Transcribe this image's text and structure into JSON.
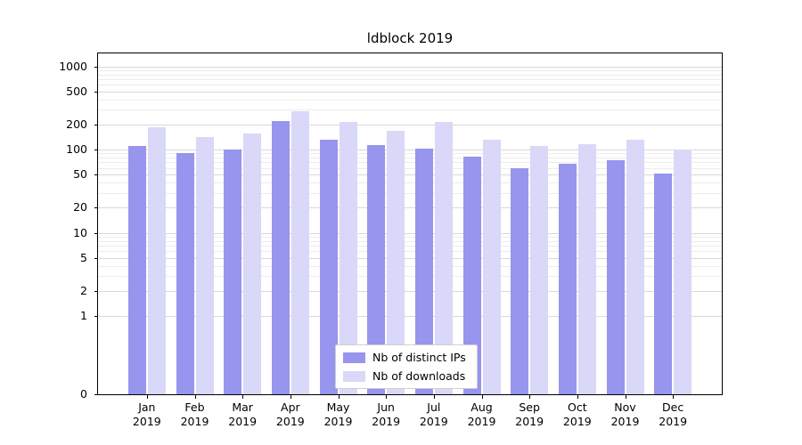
{
  "chart_data": {
    "type": "bar",
    "title": "ldblock 2019",
    "y_scale": "symlog",
    "grid": true,
    "legend_position": "lower center",
    "ylim": [
      0,
      1500
    ],
    "y_ticks": [
      0,
      1,
      2,
      5,
      10,
      20,
      50,
      100,
      200,
      500,
      1000
    ],
    "y_minor_ticks": [
      3,
      4,
      6,
      7,
      8,
      9,
      30,
      40,
      60,
      70,
      80,
      90,
      300,
      400,
      600,
      700,
      800,
      900
    ],
    "categories": [
      "Jan 2019",
      "Feb 2019",
      "Mar 2019",
      "Apr 2019",
      "May 2019",
      "Jun 2019",
      "Jul 2019",
      "Aug 2019",
      "Sep 2019",
      "Oct 2019",
      "Nov 2019",
      "Dec 2019"
    ],
    "series": [
      {
        "name": "Nb of distinct IPs",
        "color": "#9795ed",
        "values": [
          110,
          90,
          100,
          220,
          130,
          113,
          102,
          82,
          60,
          67,
          74,
          52
        ]
      },
      {
        "name": "Nb of downloads",
        "color": "#d9d8f8",
        "values": [
          185,
          140,
          155,
          290,
          215,
          168,
          212,
          130,
          110,
          116,
          130,
          100
        ]
      }
    ]
  }
}
